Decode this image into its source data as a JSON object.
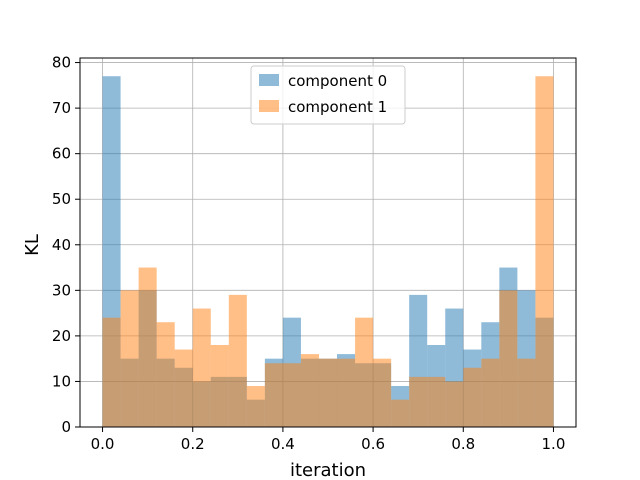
{
  "chart_data": {
    "type": "bar",
    "title": "",
    "xlabel": "iteration",
    "ylabel": "KL",
    "xlim": [
      -0.05,
      1.05
    ],
    "ylim": [
      0,
      81
    ],
    "xticks": [
      "0.0",
      "0.2",
      "0.4",
      "0.6",
      "0.8",
      "1.0"
    ],
    "yticks": [
      "0",
      "10",
      "20",
      "30",
      "40",
      "50",
      "60",
      "70",
      "80"
    ],
    "grid": true,
    "legend_position": "upper center",
    "bin_edges": [
      0.0,
      0.04,
      0.08,
      0.12,
      0.16,
      0.2,
      0.24,
      0.28,
      0.32,
      0.36,
      0.4,
      0.44,
      0.48,
      0.52,
      0.56,
      0.6,
      0.64,
      0.68,
      0.72,
      0.76,
      0.8,
      0.84,
      0.88,
      0.92,
      0.96,
      1.0
    ],
    "series": [
      {
        "name": "component 0",
        "color": "#1f77b4",
        "opacity": 0.5,
        "values": [
          77,
          15,
          30,
          15,
          13,
          10,
          11,
          11,
          6,
          15,
          24,
          15,
          15,
          16,
          14,
          14,
          9,
          29,
          18,
          26,
          17,
          23,
          35,
          30,
          24
        ]
      },
      {
        "name": "component 1",
        "color": "#ff7f0e",
        "opacity": 0.5,
        "values": [
          24,
          30,
          35,
          23,
          17,
          26,
          18,
          29,
          9,
          14,
          14,
          16,
          15,
          15,
          24,
          15,
          6,
          11,
          11,
          10,
          13,
          15,
          30,
          15,
          77
        ]
      }
    ]
  }
}
